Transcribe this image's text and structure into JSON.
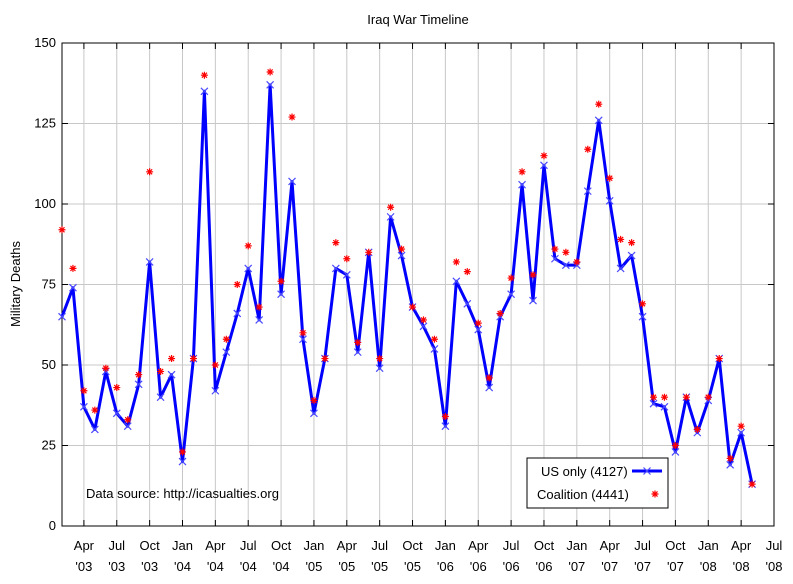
{
  "chart_data": {
    "type": "line",
    "title": "Iraq War Timeline",
    "xlabel": "",
    "ylabel": "Military Deaths",
    "ylim": [
      0,
      150
    ],
    "yticks": [
      0,
      25,
      50,
      75,
      100,
      125,
      150
    ],
    "grid": true,
    "legend_position": "bottom-right",
    "annotation": "Data source: http://icasualties.org",
    "xticks": [
      {
        "month": 2,
        "line1": "Apr",
        "line2": "'03"
      },
      {
        "month": 5,
        "line1": "Jul",
        "line2": "'03"
      },
      {
        "month": 8,
        "line1": "Oct",
        "line2": "'03"
      },
      {
        "month": 11,
        "line1": "Jan",
        "line2": "'04"
      },
      {
        "month": 14,
        "line1": "Apr",
        "line2": "'04"
      },
      {
        "month": 17,
        "line1": "Jul",
        "line2": "'04"
      },
      {
        "month": 20,
        "line1": "Oct",
        "line2": "'04"
      },
      {
        "month": 23,
        "line1": "Jan",
        "line2": "'05"
      },
      {
        "month": 26,
        "line1": "Apr",
        "line2": "'05"
      },
      {
        "month": 29,
        "line1": "Jul",
        "line2": "'05"
      },
      {
        "month": 32,
        "line1": "Oct",
        "line2": "'05"
      },
      {
        "month": 35,
        "line1": "Jan",
        "line2": "'06"
      },
      {
        "month": 38,
        "line1": "Apr",
        "line2": "'06"
      },
      {
        "month": 41,
        "line1": "Jul",
        "line2": "'06"
      },
      {
        "month": 44,
        "line1": "Oct",
        "line2": "'06"
      },
      {
        "month": 47,
        "line1": "Jan",
        "line2": "'07"
      },
      {
        "month": 50,
        "line1": "Apr",
        "line2": "'07"
      },
      {
        "month": 53,
        "line1": "Jul",
        "line2": "'07"
      },
      {
        "month": 56,
        "line1": "Oct",
        "line2": "'07"
      },
      {
        "month": 59,
        "line1": "Jan",
        "line2": "'08"
      },
      {
        "month": 62,
        "line1": "Apr",
        "line2": "'08"
      },
      {
        "month": 65,
        "line1": "Jul",
        "line2": "'08"
      }
    ],
    "xlim": [
      0,
      65
    ],
    "series": [
      {
        "name": "US only (4127)",
        "color": "#0000ff",
        "marker": "x",
        "values": [
          65,
          74,
          37,
          30,
          48,
          35,
          31,
          44,
          82,
          40,
          47,
          20,
          52,
          135,
          42,
          54,
          66,
          80,
          64,
          137,
          72,
          107,
          58,
          35,
          52,
          80,
          78,
          54,
          85,
          49,
          96,
          84,
          68,
          62,
          55,
          31,
          76,
          69,
          61,
          43,
          65,
          72,
          106,
          70,
          112,
          83,
          81,
          81,
          104,
          126,
          101,
          80,
          84,
          65,
          38,
          37,
          23,
          40,
          29,
          39,
          52,
          19,
          29,
          13
        ]
      },
      {
        "name": "Coalition (4441)",
        "color": "#ff0000",
        "marker": "asterisk",
        "values": [
          92,
          80,
          42,
          36,
          49,
          43,
          33,
          47,
          110,
          48,
          52,
          23,
          52,
          140,
          50,
          58,
          75,
          87,
          68,
          141,
          76,
          127,
          60,
          39,
          52,
          88,
          83,
          57,
          85,
          52,
          99,
          86,
          68,
          64,
          58,
          34,
          82,
          79,
          63,
          46,
          66,
          77,
          110,
          78,
          115,
          86,
          85,
          82,
          117,
          131,
          108,
          89,
          88,
          69,
          40,
          40,
          25,
          40,
          30,
          40,
          52,
          21,
          31,
          13
        ]
      }
    ]
  }
}
